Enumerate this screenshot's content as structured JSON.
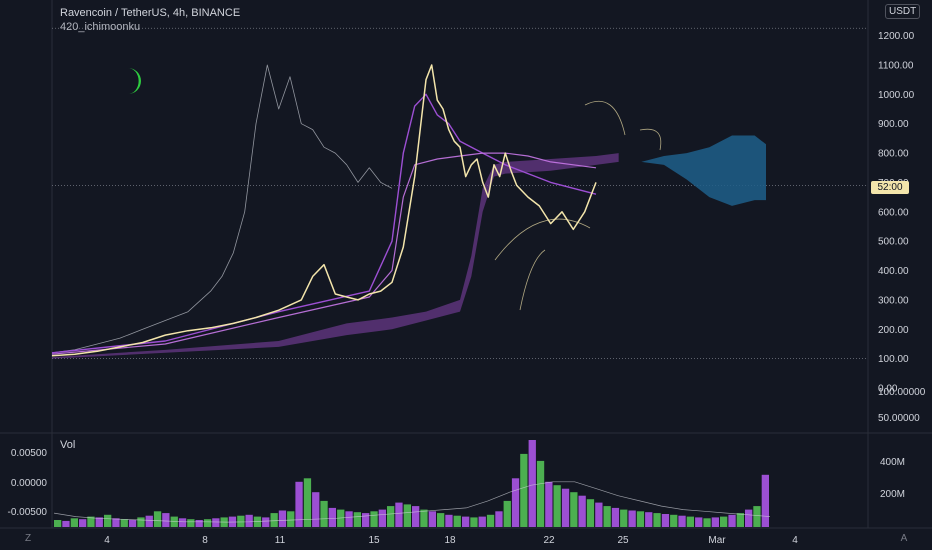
{
  "header": {
    "symbol_line": "Ravencoin / TetherUS, 4h, BINANCE",
    "indicator": "420_ichimoonku"
  },
  "axis": {
    "unit_badge": "USDT",
    "price_tag": "52:00",
    "vol_label": "Vol"
  },
  "buttons": {
    "left_corner": "Z",
    "right_corner": "A"
  },
  "colors": {
    "background": "#131722",
    "price_line": "#f3e5ab",
    "white_line": "#b2b5be",
    "purple": "#9c4fd3",
    "cloud": "#7b3fa0",
    "future_cloud": "#1e5f8a",
    "vol_green": "#4caf50",
    "vol_purple": "#9c4fd3",
    "moon": "#2ecc40"
  },
  "icons": [
    "crescent-moon-icon"
  ],
  "chart_data": [
    {
      "type": "line",
      "panel": "price",
      "y_unit": "USDT",
      "y_ticks": [
        "1200.00",
        "1100.00",
        "1000.00",
        "900.00",
        "800.00",
        "700.00",
        "600.00",
        "500.00",
        "400.00",
        "300.00",
        "200.00",
        "100.00",
        "0.00"
      ],
      "x_ticks": [
        "4",
        "8",
        "11",
        "15",
        "18",
        "22",
        "25",
        "Mar",
        "4"
      ],
      "ylim": [
        0,
        1260
      ],
      "horizontal_lines": [
        1225,
        100,
        690
      ],
      "series": [
        {
          "role": "price",
          "x": [
            0,
            2,
            4,
            6,
            8,
            10,
            12,
            14,
            16,
            18,
            20,
            22,
            23,
            24,
            25,
            26,
            27,
            28,
            29,
            30,
            31,
            32,
            33,
            33.5,
            34,
            34.5,
            35,
            35.5,
            36,
            36.5,
            37,
            37.5,
            38,
            38.5,
            39,
            39.5,
            40,
            40.5,
            41,
            42,
            43,
            44,
            45,
            46,
            47,
            48
          ],
          "y": [
            110,
            115,
            125,
            140,
            155,
            180,
            195,
            205,
            220,
            240,
            265,
            300,
            380,
            420,
            320,
            310,
            300,
            320,
            330,
            360,
            480,
            720,
            1050,
            1100,
            980,
            950,
            880,
            840,
            820,
            720,
            760,
            780,
            700,
            650,
            760,
            720,
            800,
            740,
            690,
            650,
            620,
            560,
            600,
            540,
            600,
            700
          ]
        },
        {
          "role": "lagging_line",
          "x": [
            0,
            2,
            4,
            6,
            8,
            10,
            12,
            14,
            15,
            16,
            17,
            18,
            19,
            20,
            21,
            22,
            23,
            24,
            25,
            26,
            27,
            28,
            29,
            30
          ],
          "y": [
            120,
            130,
            150,
            170,
            200,
            230,
            260,
            330,
            380,
            460,
            600,
            900,
            1100,
            950,
            1060,
            900,
            880,
            820,
            800,
            760,
            700,
            750,
            700,
            680
          ]
        },
        {
          "role": "kijun",
          "x": [
            0,
            10,
            20,
            28,
            30,
            31,
            32,
            33,
            34,
            35,
            36,
            38,
            40,
            42,
            44,
            46,
            48
          ],
          "y": [
            120,
            160,
            260,
            330,
            500,
            800,
            960,
            1000,
            930,
            900,
            840,
            800,
            760,
            730,
            700,
            680,
            660
          ]
        },
        {
          "role": "tenkan",
          "x": [
            0,
            10,
            20,
            28,
            30,
            31,
            32,
            34,
            36,
            38,
            40,
            42,
            44,
            46,
            48
          ],
          "y": [
            115,
            150,
            240,
            310,
            400,
            650,
            760,
            780,
            790,
            800,
            800,
            790,
            770,
            760,
            750
          ]
        }
      ]
    },
    {
      "type": "bar",
      "panel": "volume",
      "title": "Vol",
      "y_ticks": [
        "400M",
        "200M"
      ],
      "left_ticks": [
        "0.00500",
        "0.00000",
        "-0.00500"
      ],
      "values": [
        40,
        35,
        50,
        45,
        60,
        55,
        70,
        50,
        45,
        40,
        55,
        65,
        90,
        80,
        60,
        50,
        45,
        40,
        45,
        50,
        55,
        60,
        65,
        70,
        60,
        55,
        80,
        95,
        90,
        260,
        280,
        200,
        150,
        110,
        100,
        90,
        85,
        80,
        90,
        100,
        120,
        140,
        130,
        120,
        100,
        90,
        80,
        70,
        65,
        60,
        55,
        60,
        70,
        90,
        150,
        280,
        420,
        500,
        380,
        260,
        240,
        220,
        200,
        180,
        160,
        140,
        120,
        110,
        100,
        95,
        90,
        85,
        80,
        75,
        70,
        65,
        60,
        55,
        50,
        55,
        60,
        70,
        80,
        100,
        120,
        300
      ],
      "series_colors": "alternating green/purple"
    }
  ]
}
